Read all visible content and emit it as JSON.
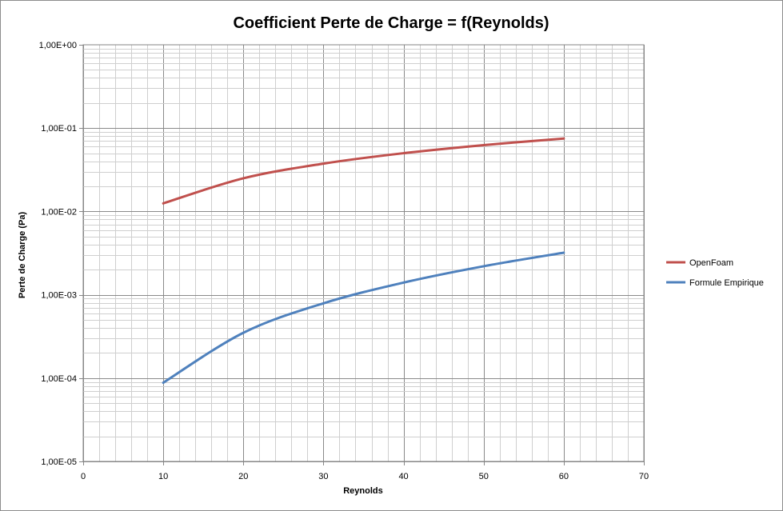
{
  "chart_data": {
    "type": "line",
    "title": "Coefficient Perte de Charge = f(Reynolds)",
    "xlabel": "Reynolds",
    "ylabel": "Perte de Charge (Pa)",
    "x_scale": "linear",
    "y_scale": "log",
    "xlim": [
      0,
      70
    ],
    "ylim": [
      1e-05,
      1
    ],
    "x_ticks": [
      0,
      10,
      20,
      30,
      40,
      50,
      60,
      70
    ],
    "x_tick_labels": [
      "0",
      "10",
      "20",
      "30",
      "40",
      "50",
      "60",
      "70"
    ],
    "y_ticks": [
      1e-05,
      0.0001,
      0.001,
      0.01,
      0.1,
      1
    ],
    "y_tick_labels": [
      "1,00E-05",
      "1,00E-04",
      "1,00E-03",
      "1,00E-02",
      "1,00E-01",
      "1,00E+00"
    ],
    "grid": true,
    "legend_position": "right",
    "x": [
      10,
      20,
      30,
      40,
      50,
      60
    ],
    "series": [
      {
        "name": "OpenFoam",
        "color": "#c0504d",
        "values": [
          0.0125,
          0.025,
          0.0375,
          0.05,
          0.0625,
          0.075
        ]
      },
      {
        "name": "Formule Empirique",
        "color": "#4f81bd",
        "values": [
          8.8e-05,
          0.00035,
          0.00079,
          0.0014,
          0.0022,
          0.0032
        ]
      }
    ]
  }
}
